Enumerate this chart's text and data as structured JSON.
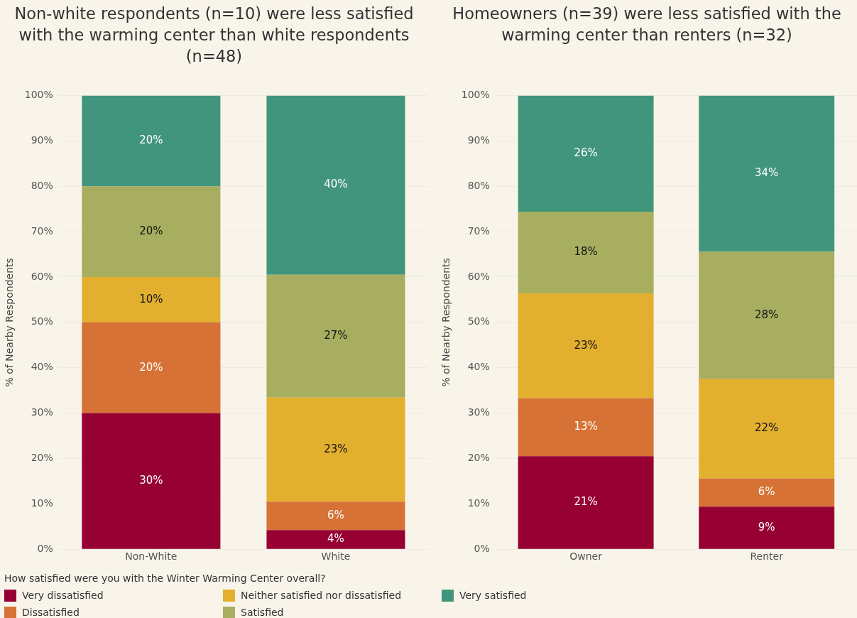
{
  "chart_data": [
    {
      "type": "bar",
      "title": "Non-white respondents (n=10) were less satisfied with the warming center than white respondents (n=48)",
      "ylabel": "% of Nearby Respondents",
      "categories": [
        "Non-White",
        "White"
      ],
      "stacked": true,
      "ylim": [
        0,
        100
      ],
      "yticks": [
        {
          "value": 0,
          "label": "0%"
        },
        {
          "value": 10,
          "label": "10%"
        },
        {
          "value": 20,
          "label": "20%"
        },
        {
          "value": 30,
          "label": "30%"
        },
        {
          "value": 40,
          "label": "40%"
        },
        {
          "value": 50,
          "label": "50%"
        },
        {
          "value": 60,
          "label": "60%"
        },
        {
          "value": 70,
          "label": "70%"
        },
        {
          "value": 80,
          "label": "80%"
        },
        {
          "value": 90,
          "label": "90%"
        },
        {
          "value": 100,
          "label": "100%"
        }
      ],
      "grid": "y",
      "legend": "bottom",
      "legend_title": "How satisfied were you with the Winter Warming Center overall?",
      "series": [
        {
          "name": "Very dissatisfied",
          "color": "#960033",
          "values": [
            30,
            4.2
          ],
          "value_labels": [
            "30%",
            "4%"
          ]
        },
        {
          "name": "Dissatisfied",
          "color": "#d67235",
          "values": [
            20,
            6.3
          ],
          "value_labels": [
            "20%",
            "6%"
          ]
        },
        {
          "name": "Neither satisfied nor dissatisfied",
          "color": "#e2af2f",
          "values": [
            10,
            22.9
          ],
          "value_labels": [
            "10%",
            "23%"
          ]
        },
        {
          "name": "Satisfied",
          "color": "#a8ae60",
          "values": [
            20,
            27.1
          ],
          "value_labels": [
            "20%",
            "27%"
          ]
        },
        {
          "name": "Very satisfied",
          "color": "#41957c",
          "values": [
            20,
            39.5
          ],
          "value_labels": [
            "20%",
            "40%"
          ]
        }
      ]
    },
    {
      "type": "bar",
      "title": "Homeowners (n=39) were less satisfied with the warming center than renters (n=32)",
      "ylabel": "% of Nearby Respondents",
      "categories": [
        "Owner",
        "Renter"
      ],
      "stacked": true,
      "ylim": [
        0,
        100
      ],
      "yticks": [
        {
          "value": 0,
          "label": "0%"
        },
        {
          "value": 10,
          "label": "10%"
        },
        {
          "value": 20,
          "label": "20%"
        },
        {
          "value": 30,
          "label": "30%"
        },
        {
          "value": 40,
          "label": "40%"
        },
        {
          "value": 50,
          "label": "50%"
        },
        {
          "value": 60,
          "label": "60%"
        },
        {
          "value": 70,
          "label": "70%"
        },
        {
          "value": 80,
          "label": "80%"
        },
        {
          "value": 90,
          "label": "90%"
        },
        {
          "value": 100,
          "label": "100%"
        }
      ],
      "grid": "y",
      "legend": false,
      "series": [
        {
          "color": "#960033",
          "values": [
            20.5,
            9.4
          ],
          "value_labels": [
            "21%",
            "9%"
          ]
        },
        {
          "color": "#d67235",
          "values": [
            12.8,
            6.2
          ],
          "value_labels": [
            "13%",
            "6%"
          ]
        },
        {
          "color": "#e2af2f",
          "values": [
            23.1,
            21.9
          ],
          "value_labels": [
            "23%",
            "22%"
          ]
        },
        {
          "color": "#a8ae60",
          "values": [
            18,
            28.1
          ],
          "value_labels": [
            "18%",
            "28%"
          ]
        },
        {
          "color": "#41957c",
          "values": [
            25.6,
            34.4
          ],
          "value_labels": [
            "26%",
            "34%"
          ]
        }
      ]
    }
  ]
}
